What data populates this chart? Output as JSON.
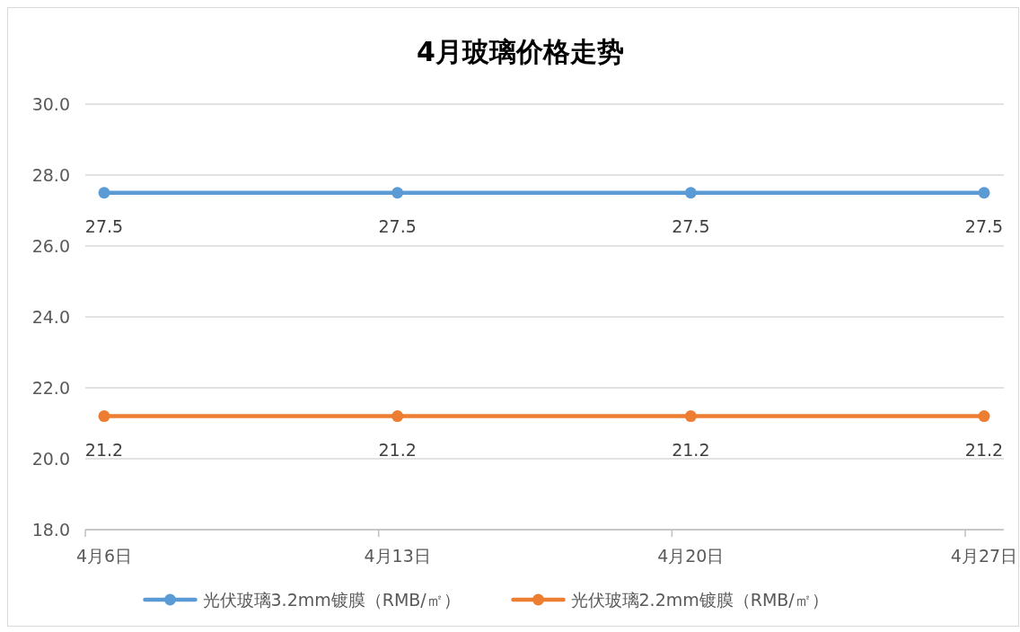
{
  "chart_data": {
    "type": "line",
    "title": "4月玻璃价格走势",
    "categories": [
      "4月6日",
      "4月13日",
      "4月20日",
      "4月27日"
    ],
    "series": [
      {
        "name": "光伏玻璃3.2mm镀膜（RMB/㎡）",
        "color": "#5b9bd5",
        "values": [
          27.5,
          27.5,
          27.5,
          27.5
        ]
      },
      {
        "name": "光伏玻璃2.2mm镀膜（RMB/㎡）",
        "color": "#ed7d31",
        "values": [
          21.2,
          21.2,
          21.2,
          21.2
        ]
      }
    ],
    "ylim": [
      18,
      30
    ],
    "yticks": [
      {
        "value": 18,
        "label": "18.0"
      },
      {
        "value": 20,
        "label": "20.0"
      },
      {
        "value": 22,
        "label": "22.0"
      },
      {
        "value": 24,
        "label": "24.0"
      },
      {
        "value": 26,
        "label": "26.0"
      },
      {
        "value": 28,
        "label": "28.0"
      },
      {
        "value": 30,
        "label": "30.0"
      }
    ],
    "grid": "y",
    "legend": "bottom",
    "marker": "circle",
    "line_style": "solid",
    "data_labels": true
  }
}
